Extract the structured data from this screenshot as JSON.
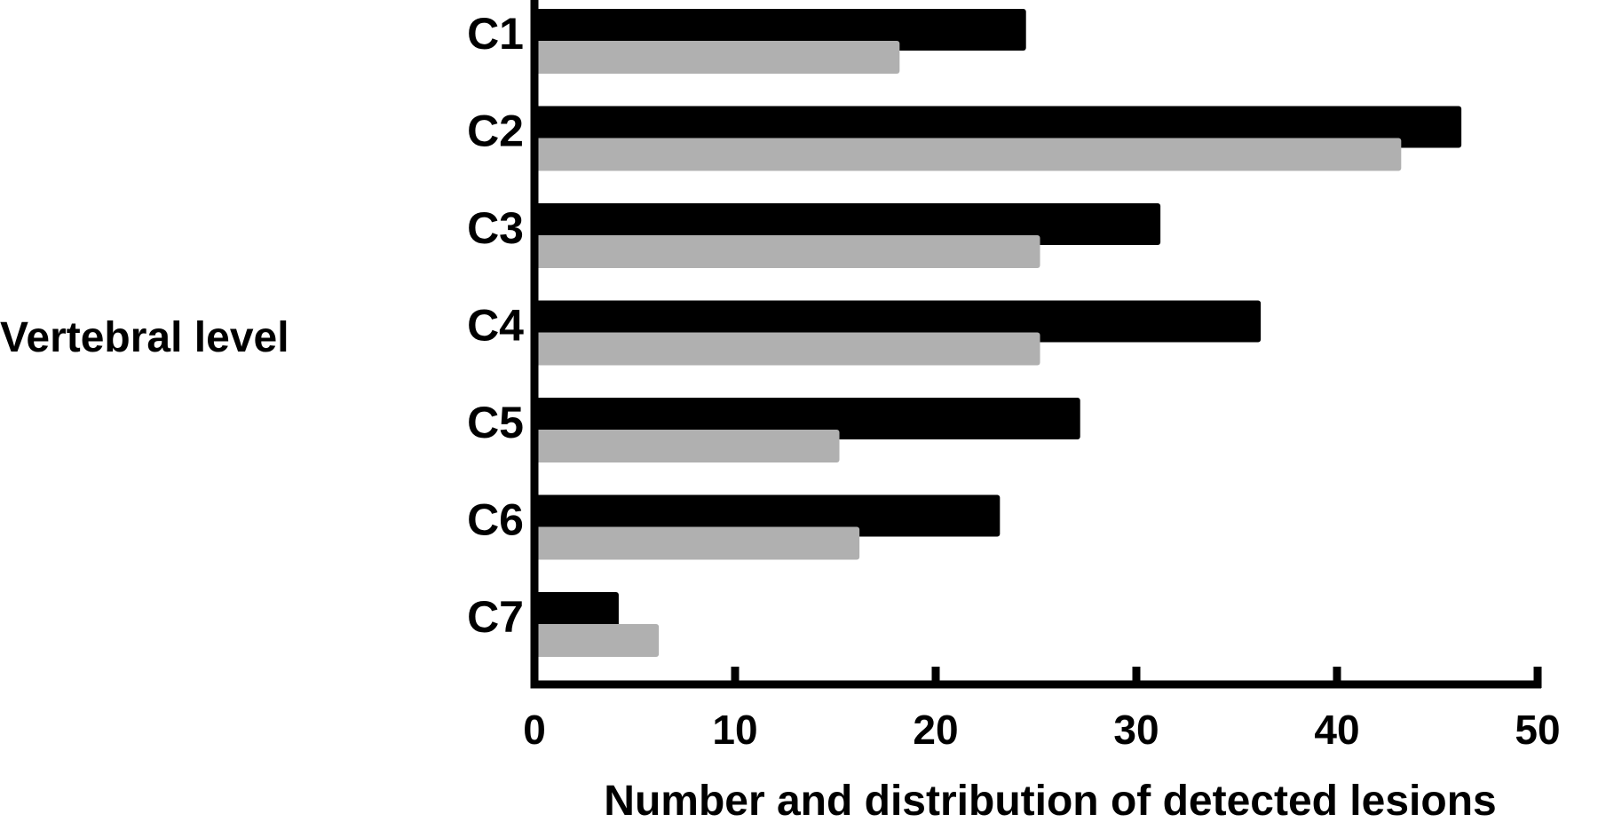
{
  "chart_data": {
    "type": "bar",
    "orientation": "horizontal",
    "categories": [
      "C1",
      "C2",
      "C3",
      "C4",
      "C5",
      "C6",
      "C7"
    ],
    "series": [
      {
        "values": [
          24.5,
          46.2,
          31.2,
          36.2,
          27.2,
          23.2,
          4.2
        ],
        "color": "#000000"
      },
      {
        "values": [
          18.2,
          43.2,
          25.2,
          25.2,
          15.2,
          16.2,
          6.2
        ],
        "color": "#b0b0b0"
      }
    ],
    "xlabel": "Number and distribution of detected lesions",
    "ylabel": "Vertebral level",
    "xlim": [
      0,
      50
    ],
    "xticks": [
      "0",
      "10",
      "20",
      "30",
      "40",
      "50"
    ],
    "grid": false
  }
}
